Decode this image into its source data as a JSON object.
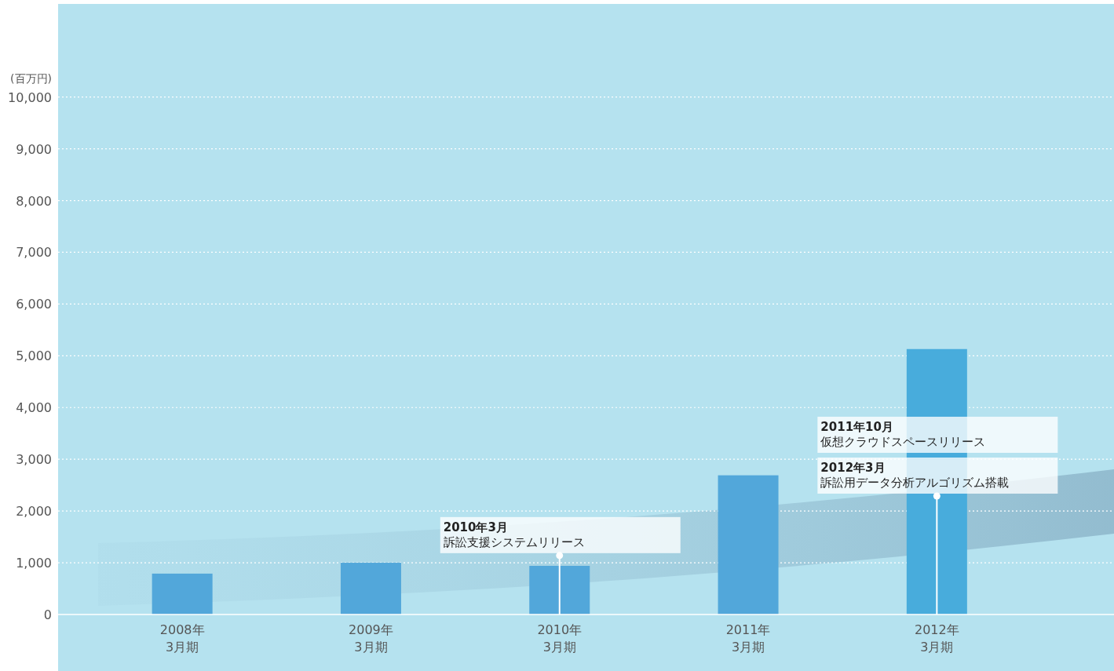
{
  "chart_data": {
    "type": "bar",
    "ylabel": "(百万円)",
    "categories": [
      "2008年\n3月期",
      "2009年\n3月期",
      "2010年\n3月期",
      "2011年\n3月期",
      "2012年\n3月期"
    ],
    "values": [
      790,
      1000,
      940,
      2690,
      5130
    ],
    "colors": [
      "#52a7da",
      "#52a7da",
      "#52a7da",
      "#52a7da",
      "#48acdc"
    ],
    "ylim": [
      0,
      11800
    ],
    "yticks": [
      0,
      {
        "value": 1000,
        "label": "1,000"
      },
      {
        "value": 2000,
        "label": "2,000"
      },
      {
        "value": 3000,
        "label": "3,000"
      },
      {
        "value": 4000,
        "label": "4,000"
      },
      {
        "value": 5000,
        "label": "5,000"
      },
      {
        "value": 6000,
        "label": "6,000"
      },
      {
        "value": 7000,
        "label": "7,000"
      },
      {
        "value": 8000,
        "label": "8,000"
      },
      {
        "value": 9000,
        "label": "9,000"
      },
      {
        "value": 10000,
        "label": "10,000"
      }
    ],
    "grid": "y",
    "annotations": [
      "2010年3月",
      {
        "text": "訴訟支援システムリリース",
        "x": "2010年\n3月期",
        "y": 1140
      },
      "2012年3月",
      {
        "text": "訴訟用データ分析アルゴリズム搭載",
        "x": "2012年\n3月期",
        "y": 2290
      },
      "2011年10月",
      "仮想クラウドスペースリリース"
    ]
  }
}
